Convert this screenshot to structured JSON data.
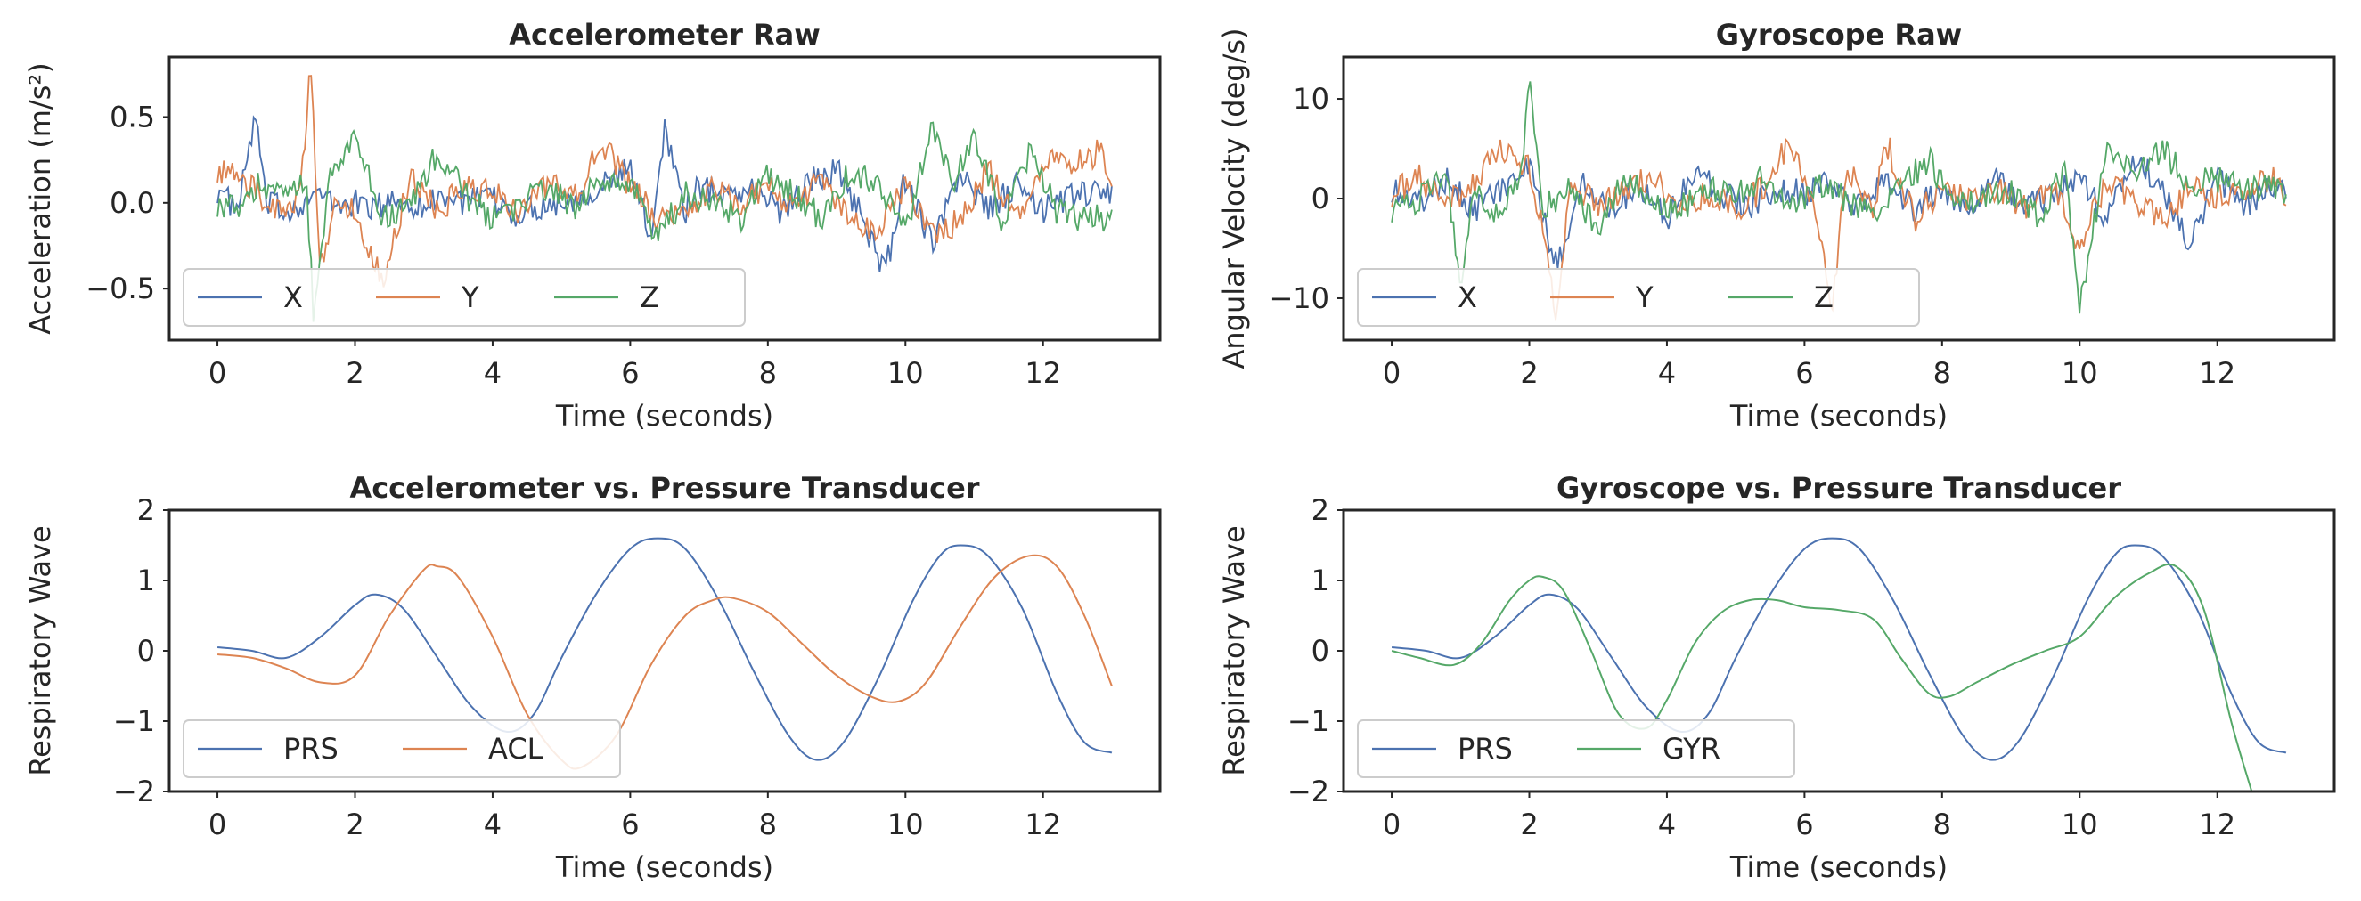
{
  "chart_data": [
    {
      "type": "line",
      "title": "Accelerometer Raw",
      "xlabel": "Time (seconds)",
      "ylabel": "Acceleration (m/s²)",
      "xlim": [
        -0.7,
        13.7
      ],
      "ylim": [
        -0.8,
        0.85
      ],
      "xticks": [
        0,
        2,
        4,
        6,
        8,
        10,
        12
      ],
      "yticks": [
        -0.5,
        0.0,
        0.5
      ],
      "ytick_labels": [
        "−0.5",
        "0.0",
        "0.5"
      ],
      "legend": {
        "placement": "lower-left",
        "columns": 3
      },
      "grid": false,
      "series": [
        {
          "name": "X",
          "color": "#4c72b0",
          "noisy": true,
          "x": [
            0,
            0.3,
            0.55,
            0.7,
            1.0,
            1.3,
            1.5,
            1.7,
            2.0,
            2.3,
            2.6,
            3.0,
            3.3,
            3.6,
            4.0,
            4.3,
            4.6,
            5.0,
            5.3,
            5.6,
            6.0,
            6.3,
            6.5,
            6.8,
            7.0,
            7.4,
            7.8,
            8.2,
            8.6,
            9.0,
            9.4,
            9.7,
            10.0,
            10.4,
            10.8,
            11.2,
            11.6,
            12.0,
            12.4,
            12.8,
            13.0
          ],
          "y": [
            0.08,
            -0.05,
            0.52,
            0.0,
            -0.05,
            0.02,
            0.05,
            -0.02,
            0.0,
            -0.03,
            0.02,
            -0.02,
            0.05,
            0.0,
            0.02,
            -0.08,
            -0.02,
            0.0,
            0.05,
            0.1,
            0.2,
            -0.2,
            0.45,
            -0.05,
            0.1,
            0.05,
            0.08,
            -0.05,
            0.12,
            0.2,
            -0.1,
            -0.42,
            0.15,
            -0.25,
            0.18,
            -0.05,
            0.1,
            -0.05,
            0.05,
            0.05,
            0.08
          ]
        },
        {
          "name": "Y",
          "color": "#dd8452",
          "noisy": true,
          "x": [
            0,
            0.3,
            0.6,
            1.0,
            1.2,
            1.35,
            1.5,
            1.7,
            2.0,
            2.4,
            2.8,
            3.2,
            3.6,
            4.0,
            4.4,
            4.8,
            5.2,
            5.6,
            6.0,
            6.4,
            6.8,
            7.2,
            7.6,
            8.0,
            8.4,
            8.8,
            9.2,
            9.6,
            10.0,
            10.4,
            10.8,
            11.2,
            11.6,
            12.0,
            12.4,
            12.8,
            13.0
          ],
          "y": [
            0.2,
            0.15,
            0.05,
            -0.1,
            0.05,
            0.8,
            -0.4,
            0.0,
            -0.05,
            -0.45,
            0.15,
            -0.05,
            0.1,
            0.05,
            -0.05,
            0.1,
            0.05,
            0.35,
            0.1,
            -0.1,
            -0.05,
            0.1,
            0.0,
            0.1,
            -0.05,
            0.15,
            -0.1,
            -0.15,
            0.1,
            -0.2,
            -0.1,
            0.2,
            -0.1,
            0.25,
            0.2,
            0.3,
            0.15
          ]
        },
        {
          "name": "Z",
          "color": "#55a868",
          "noisy": true,
          "x": [
            0,
            0.3,
            0.6,
            1.0,
            1.3,
            1.4,
            1.6,
            2.0,
            2.4,
            2.8,
            3.2,
            3.6,
            4.0,
            4.4,
            4.8,
            5.2,
            5.6,
            6.0,
            6.4,
            6.8,
            7.2,
            7.6,
            8.0,
            8.4,
            8.8,
            9.2,
            9.6,
            10.0,
            10.4,
            10.7,
            11.0,
            11.4,
            11.8,
            12.2,
            12.6,
            13.0
          ],
          "y": [
            0.0,
            -0.05,
            0.1,
            0.05,
            0.1,
            -0.7,
            0.1,
            0.38,
            -0.1,
            0.0,
            0.3,
            0.05,
            -0.1,
            0.0,
            0.1,
            -0.05,
            0.15,
            0.1,
            -0.2,
            0.05,
            0.0,
            -0.1,
            0.15,
            0.05,
            -0.1,
            0.2,
            0.1,
            -0.15,
            0.45,
            0.1,
            0.4,
            -0.1,
            0.3,
            -0.05,
            -0.1,
            -0.08
          ]
        }
      ]
    },
    {
      "type": "line",
      "title": "Gyroscope Raw",
      "xlabel": "Time (seconds)",
      "ylabel": "Angular Velocity (deg/s)",
      "xlim": [
        -0.7,
        13.7
      ],
      "ylim": [
        -14.2,
        14.2
      ],
      "xticks": [
        0,
        2,
        4,
        6,
        8,
        10,
        12
      ],
      "yticks": [
        -10,
        0,
        10
      ],
      "ytick_labels": [
        "−10",
        "0",
        "10"
      ],
      "legend": {
        "placement": "lower-left",
        "columns": 3
      },
      "grid": false,
      "series": [
        {
          "name": "X",
          "color": "#4c72b0",
          "noisy": true,
          "x": [
            0,
            0.4,
            0.8,
            1.2,
            1.6,
            2.0,
            2.4,
            2.8,
            3.2,
            3.6,
            4.0,
            4.4,
            4.8,
            5.2,
            5.6,
            6.0,
            6.4,
            6.8,
            7.2,
            7.6,
            8.0,
            8.4,
            8.8,
            9.2,
            9.6,
            10.0,
            10.4,
            10.8,
            11.2,
            11.6,
            12.0,
            12.4,
            12.8,
            13.0
          ],
          "y": [
            1.0,
            -0.5,
            2.0,
            -1.0,
            1.0,
            3.0,
            -7.0,
            2.0,
            -1.0,
            1.5,
            -2.0,
            3.0,
            0.5,
            -1.0,
            1.0,
            0.5,
            1.5,
            -1.0,
            2.0,
            -1.0,
            1.0,
            -1.5,
            2.5,
            -1.0,
            0.5,
            2.0,
            -2.0,
            4.0,
            1.0,
            -5.0,
            2.0,
            -1.0,
            1.5,
            0.0
          ]
        },
        {
          "name": "Y",
          "color": "#dd8452",
          "noisy": true,
          "x": [
            0,
            0.4,
            0.8,
            1.2,
            1.6,
            2.0,
            2.2,
            2.4,
            2.6,
            3.0,
            3.4,
            3.8,
            4.2,
            4.6,
            5.0,
            5.4,
            5.8,
            6.2,
            6.4,
            6.6,
            7.0,
            7.2,
            7.6,
            8.0,
            8.4,
            8.8,
            9.2,
            9.6,
            10.0,
            10.4,
            10.8,
            11.2,
            11.6,
            12.0,
            12.4,
            12.8,
            13.0
          ],
          "y": [
            0.5,
            2.0,
            -0.5,
            1.5,
            5.0,
            3.0,
            -3.0,
            -13.0,
            2.0,
            -1.0,
            1.0,
            2.0,
            -1.0,
            0.5,
            -1.0,
            1.0,
            6.0,
            -2.0,
            -11.0,
            3.0,
            -1.0,
            5.5,
            -2.0,
            1.0,
            0.0,
            1.0,
            -1.0,
            1.5,
            -5.0,
            2.0,
            0.0,
            -2.0,
            1.0,
            0.0,
            1.0,
            2.0,
            0.5
          ]
        },
        {
          "name": "Z",
          "color": "#55a868",
          "noisy": true,
          "x": [
            0,
            0.4,
            0.8,
            1.0,
            1.2,
            1.6,
            1.9,
            2.0,
            2.2,
            2.6,
            3.0,
            3.4,
            3.8,
            4.2,
            4.6,
            5.0,
            5.4,
            5.8,
            6.2,
            6.6,
            7.0,
            7.4,
            7.8,
            8.2,
            8.6,
            9.0,
            9.4,
            9.8,
            10.0,
            10.4,
            10.8,
            11.2,
            11.6,
            12.0,
            12.4,
            12.8,
            13.0
          ],
          "y": [
            -1.0,
            0.0,
            2.0,
            -8.0,
            1.0,
            -2.0,
            3.0,
            12.5,
            -1.0,
            1.0,
            -3.0,
            2.0,
            0.0,
            -1.0,
            1.0,
            0.5,
            2.0,
            -1.0,
            1.5,
            0.0,
            -2.0,
            1.0,
            4.0,
            -1.0,
            0.5,
            1.0,
            -2.0,
            3.0,
            -11.0,
            5.0,
            2.0,
            5.0,
            1.5,
            2.0,
            1.0,
            1.5,
            0.0
          ]
        }
      ]
    },
    {
      "type": "line",
      "title": "Accelerometer vs. Pressure Transducer",
      "xlabel": "Time (seconds)",
      "ylabel": "Respiratory Wave",
      "xlim": [
        -0.7,
        13.7
      ],
      "ylim": [
        -2.0,
        2.0
      ],
      "xticks": [
        0,
        2,
        4,
        6,
        8,
        10,
        12
      ],
      "yticks": [
        -2,
        -1,
        0,
        1,
        2
      ],
      "ytick_labels": [
        "−2",
        "−1",
        "0",
        "1",
        "2"
      ],
      "legend": {
        "placement": "lower-left",
        "columns": 2
      },
      "grid": false,
      "series": [
        {
          "name": "PRS",
          "color": "#4c72b0",
          "x": [
            0,
            0.5,
            1.0,
            1.5,
            2.0,
            2.3,
            2.7,
            3.2,
            3.7,
            4.2,
            4.6,
            5.0,
            5.5,
            6.0,
            6.4,
            6.8,
            7.3,
            7.8,
            8.3,
            8.7,
            9.1,
            9.6,
            10.1,
            10.5,
            10.8,
            11.2,
            11.7,
            12.2,
            12.6,
            13.0
          ],
          "y": [
            0.05,
            0.0,
            -0.1,
            0.2,
            0.65,
            0.8,
            0.6,
            -0.1,
            -0.8,
            -1.15,
            -0.9,
            -0.1,
            0.8,
            1.45,
            1.6,
            1.45,
            0.7,
            -0.3,
            -1.2,
            -1.55,
            -1.3,
            -0.4,
            0.7,
            1.35,
            1.5,
            1.35,
            0.6,
            -0.6,
            -1.3,
            -1.45
          ]
        },
        {
          "name": "ACL",
          "color": "#dd8452",
          "x": [
            0,
            0.5,
            1.0,
            1.5,
            2.0,
            2.5,
            3.0,
            3.2,
            3.5,
            4.0,
            4.5,
            5.0,
            5.3,
            5.8,
            6.3,
            6.8,
            7.2,
            7.5,
            8.0,
            8.5,
            9.0,
            9.5,
            9.9,
            10.3,
            10.8,
            11.3,
            11.8,
            12.2,
            12.6,
            13.0
          ],
          "y": [
            -0.05,
            -0.1,
            -0.25,
            -0.45,
            -0.35,
            0.5,
            1.15,
            1.2,
            1.05,
            0.2,
            -0.9,
            -1.55,
            -1.65,
            -1.2,
            -0.2,
            0.5,
            0.72,
            0.75,
            0.55,
            0.1,
            -0.35,
            -0.65,
            -0.72,
            -0.45,
            0.35,
            1.05,
            1.35,
            1.2,
            0.5,
            -0.5
          ]
        }
      ]
    },
    {
      "type": "line",
      "title": "Gyroscope vs. Pressure Transducer",
      "xlabel": "Time (seconds)",
      "ylabel": "Respiratory Wave",
      "xlim": [
        -0.7,
        13.7
      ],
      "ylim": [
        -2.0,
        2.0
      ],
      "xticks": [
        0,
        2,
        4,
        6,
        8,
        10,
        12
      ],
      "yticks": [
        -2,
        -1,
        0,
        1,
        2
      ],
      "ytick_labels": [
        "−2",
        "−1",
        "0",
        "1",
        "2"
      ],
      "legend": {
        "placement": "lower-left",
        "columns": 2
      },
      "grid": false,
      "series": [
        {
          "name": "PRS",
          "color": "#4c72b0",
          "x": [
            0,
            0.5,
            1.0,
            1.5,
            2.0,
            2.3,
            2.7,
            3.2,
            3.7,
            4.2,
            4.6,
            5.0,
            5.5,
            6.0,
            6.4,
            6.8,
            7.3,
            7.8,
            8.3,
            8.7,
            9.1,
            9.6,
            10.1,
            10.5,
            10.8,
            11.2,
            11.7,
            12.2,
            12.6,
            13.0
          ],
          "y": [
            0.05,
            0.0,
            -0.1,
            0.2,
            0.65,
            0.8,
            0.6,
            -0.1,
            -0.8,
            -1.15,
            -0.9,
            -0.1,
            0.8,
            1.45,
            1.6,
            1.45,
            0.7,
            -0.3,
            -1.2,
            -1.55,
            -1.3,
            -0.4,
            0.7,
            1.35,
            1.5,
            1.35,
            0.6,
            -0.6,
            -1.3,
            -1.45
          ]
        },
        {
          "name": "GYR",
          "color": "#55a868",
          "x": [
            0,
            0.4,
            0.9,
            1.3,
            1.7,
            2.0,
            2.2,
            2.5,
            2.9,
            3.3,
            3.7,
            4.0,
            4.4,
            4.8,
            5.2,
            5.6,
            6.0,
            6.5,
            7.0,
            7.4,
            7.8,
            8.1,
            8.5,
            9.0,
            9.5,
            10.0,
            10.5,
            11.0,
            11.4,
            11.8,
            12.2,
            12.5
          ],
          "y": [
            0.0,
            -0.1,
            -0.2,
            0.1,
            0.7,
            1.0,
            1.05,
            0.85,
            0.0,
            -0.9,
            -1.1,
            -0.7,
            0.1,
            0.55,
            0.72,
            0.72,
            0.62,
            0.58,
            0.45,
            -0.1,
            -0.6,
            -0.65,
            -0.45,
            -0.2,
            0.0,
            0.2,
            0.75,
            1.1,
            1.2,
            0.6,
            -1.0,
            -2.0
          ]
        }
      ]
    }
  ]
}
